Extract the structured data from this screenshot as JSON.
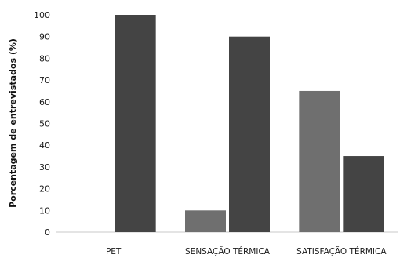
{
  "chart_data": {
    "type": "bar",
    "title": "",
    "xlabel": "",
    "ylabel": "Porcentagem de entrevistados (%)",
    "categories": [
      "PET",
      "SENSAÇÃO TÉRMICA",
      "SATISFAÇÃO TÉRMICA"
    ],
    "ylim": [
      0,
      100
    ],
    "yticks": [
      0,
      10,
      20,
      30,
      40,
      50,
      60,
      70,
      80,
      90,
      100
    ],
    "grid": false,
    "legend": "none",
    "series": [
      {
        "values": [
          0,
          10,
          65
        ],
        "color": "#6f6f6f"
      },
      {
        "values": [
          100,
          90,
          35
        ],
        "color": "#444444"
      }
    ]
  }
}
